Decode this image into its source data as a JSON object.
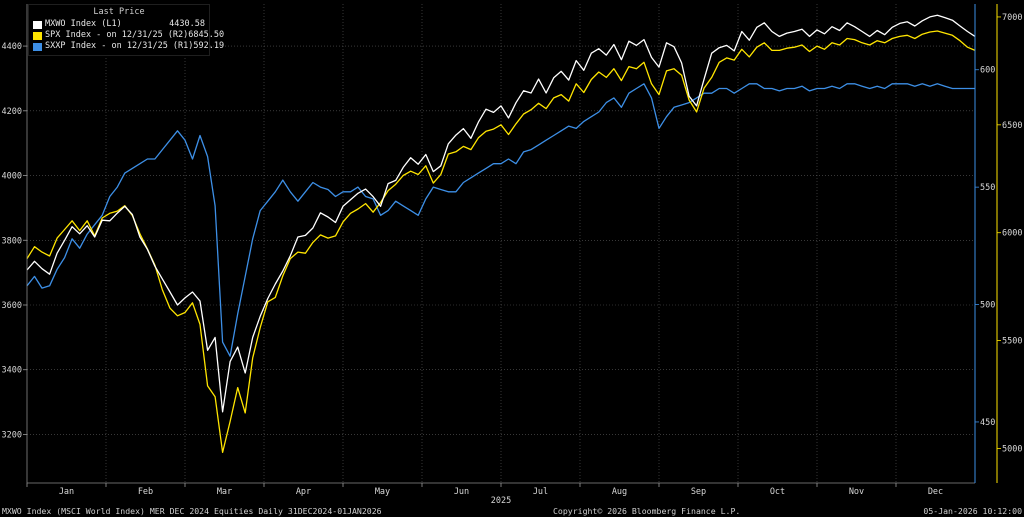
{
  "legend": {
    "header": "Last Price",
    "items": [
      {
        "label": "MXWO Index  (L1)",
        "value": "4430.58",
        "color": "#ffffff"
      },
      {
        "label": "SPX Index -  on 12/31/25  (R2)",
        "value": "6845.50",
        "color": "#ffe500"
      },
      {
        "label": "SXXP Index -  on 12/31/25  (R1)",
        "value": "592.19",
        "color": "#3d8fe6"
      }
    ]
  },
  "footer": {
    "left": "MXWO Index (MSCI World Index) MER DEC 2024 Equities Daily 31DEC2024-01JAN2026",
    "center": "Copyright© 2026 Bloomberg Finance L.P.",
    "right": "05-Jan-2026 10:12:00"
  },
  "chart_data": {
    "type": "line",
    "x_months": [
      "Jan",
      "Feb",
      "Mar",
      "Apr",
      "May",
      "Jun",
      "Jul",
      "Aug",
      "Sep",
      "Oct",
      "Nov",
      "Dec"
    ],
    "x_year_label": "2025",
    "x": [
      0,
      2,
      4,
      6,
      8,
      10,
      12,
      14,
      16,
      18,
      20,
      22,
      24,
      26,
      28,
      30,
      32,
      34,
      36,
      38,
      40,
      42,
      44,
      46,
      48,
      50,
      52,
      54,
      56,
      58,
      60,
      62,
      64,
      66,
      68,
      70,
      72,
      74,
      76,
      78,
      80,
      82,
      84,
      86,
      88,
      90,
      92,
      94,
      96,
      98,
      100,
      102,
      104,
      106,
      108,
      110,
      112,
      114,
      116,
      118,
      120,
      122,
      124,
      126,
      128,
      130,
      132,
      134,
      136,
      138,
      140,
      142,
      144,
      146,
      148,
      150,
      152,
      154,
      156,
      158,
      160,
      162,
      164,
      166,
      168,
      170,
      172,
      174,
      176,
      178,
      180,
      182,
      184,
      186,
      188,
      190,
      192,
      194,
      196,
      198,
      200,
      202,
      204,
      206,
      208,
      210,
      212,
      214,
      216,
      218,
      220,
      222,
      224,
      226,
      228,
      230,
      232,
      234,
      236,
      238,
      240,
      242,
      244,
      246,
      248,
      250,
      252
    ],
    "left_axis": {
      "label": "",
      "ylim": [
        3050,
        4530
      ],
      "ticks": [
        3200,
        3400,
        3600,
        3800,
        4000,
        4200,
        4400
      ]
    },
    "right_axis_sxxp": {
      "ylim": [
        424,
        628
      ],
      "ticks": [
        450,
        500,
        550,
        600
      ]
    },
    "right_axis_spx": {
      "ylim": [
        4840,
        7060
      ],
      "ticks": [
        5000,
        5500,
        6000,
        6500,
        7000
      ]
    },
    "series": [
      {
        "name": "MXWO Index",
        "axis": "L1",
        "color": "#ffffff",
        "values": [
          3708,
          3735,
          3712,
          3695,
          3760,
          3800,
          3842,
          3820,
          3845,
          3810,
          3862,
          3860,
          3884,
          3905,
          3880,
          3810,
          3772,
          3720,
          3680,
          3640,
          3600,
          3622,
          3640,
          3612,
          3460,
          3500,
          3270,
          3425,
          3470,
          3390,
          3500,
          3565,
          3620,
          3665,
          3705,
          3752,
          3810,
          3815,
          3838,
          3885,
          3872,
          3855,
          3905,
          3925,
          3945,
          3958,
          3935,
          3905,
          3975,
          3985,
          4025,
          4055,
          4035,
          4065,
          4012,
          4030,
          4098,
          4125,
          4145,
          4115,
          4165,
          4205,
          4195,
          4215,
          4178,
          4225,
          4262,
          4255,
          4298,
          4255,
          4302,
          4322,
          4295,
          4355,
          4325,
          4378,
          4392,
          4372,
          4405,
          4358,
          4415,
          4402,
          4420,
          4365,
          4335,
          4410,
          4398,
          4348,
          4245,
          4215,
          4298,
          4378,
          4395,
          4402,
          4385,
          4445,
          4418,
          4458,
          4472,
          4445,
          4430,
          4440,
          4445,
          4452,
          4430,
          4450,
          4438,
          4460,
          4448,
          4472,
          4460,
          4445,
          4430,
          4448,
          4435,
          4458,
          4470,
          4475,
          4462,
          4478,
          4490,
          4495,
          4488,
          4480,
          4462,
          4445,
          4430
        ]
      },
      {
        "name": "SPX Index",
        "axis": "R2",
        "color": "#ffe500",
        "values": [
          5880,
          5935,
          5910,
          5892,
          5975,
          6015,
          6055,
          6010,
          6055,
          5985,
          6068,
          6090,
          6100,
          6125,
          6080,
          5995,
          5925,
          5850,
          5735,
          5650,
          5615,
          5630,
          5675,
          5575,
          5290,
          5240,
          4982,
          5125,
          5282,
          5165,
          5420,
          5560,
          5680,
          5700,
          5800,
          5880,
          5910,
          5905,
          5955,
          5990,
          5975,
          5985,
          6050,
          6090,
          6110,
          6135,
          6095,
          6140,
          6195,
          6225,
          6265,
          6285,
          6270,
          6310,
          6230,
          6270,
          6365,
          6375,
          6400,
          6385,
          6440,
          6470,
          6480,
          6500,
          6455,
          6505,
          6550,
          6570,
          6600,
          6575,
          6625,
          6640,
          6610,
          6690,
          6650,
          6710,
          6745,
          6720,
          6760,
          6705,
          6770,
          6760,
          6790,
          6690,
          6640,
          6750,
          6760,
          6730,
          6615,
          6560,
          6670,
          6720,
          6790,
          6810,
          6800,
          6850,
          6815,
          6860,
          6880,
          6845,
          6845,
          6855,
          6860,
          6870,
          6840,
          6865,
          6850,
          6880,
          6870,
          6900,
          6895,
          6880,
          6870,
          6890,
          6880,
          6900,
          6910,
          6915,
          6900,
          6920,
          6930,
          6935,
          6925,
          6915,
          6890,
          6860,
          6845
        ]
      },
      {
        "name": "SXXP Index",
        "axis": "R1",
        "color": "#3d8fe6",
        "values": [
          508,
          512,
          507,
          508,
          515,
          520,
          528,
          524,
          530,
          534,
          538,
          546,
          550,
          556,
          558,
          560,
          562,
          562,
          566,
          570,
          574,
          570,
          562,
          572,
          563,
          542,
          484,
          478,
          496,
          512,
          528,
          540,
          544,
          548,
          553,
          548,
          544,
          548,
          552,
          550,
          549,
          546,
          548,
          548,
          550,
          546,
          545,
          538,
          540,
          544,
          542,
          540,
          538,
          545,
          550,
          549,
          548,
          548,
          552,
          554,
          556,
          558,
          560,
          560,
          562,
          560,
          565,
          566,
          568,
          570,
          572,
          574,
          576,
          575,
          578,
          580,
          582,
          586,
          588,
          584,
          590,
          592,
          594,
          588,
          575,
          580,
          584,
          585,
          586,
          588,
          590,
          590,
          592,
          592,
          590,
          592,
          594,
          594,
          592,
          592,
          591,
          592,
          592,
          593,
          591,
          592,
          592,
          593,
          592,
          594,
          594,
          593,
          592,
          593,
          592,
          594,
          594,
          594,
          593,
          594,
          593,
          594,
          593,
          592,
          592,
          592,
          592
        ]
      }
    ]
  }
}
